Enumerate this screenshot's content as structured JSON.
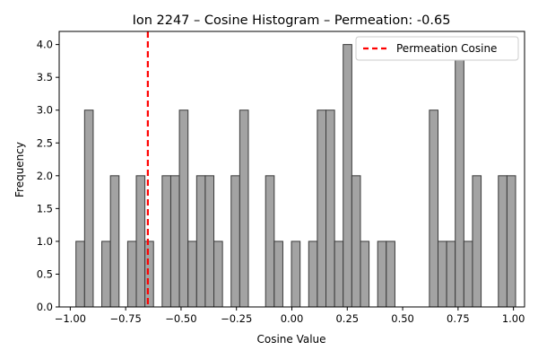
{
  "chart_data": {
    "type": "bar",
    "title": "Ion 2247 – Cosine Histogram – Permeation: -0.65",
    "xlabel": "Cosine Value",
    "ylabel": "Frequency",
    "xlim": [
      -1.05,
      1.05
    ],
    "ylim": [
      0,
      4.2
    ],
    "xticks": [
      -1.0,
      -0.75,
      -0.5,
      -0.25,
      0.0,
      0.25,
      0.5,
      0.75,
      1.0
    ],
    "xtick_labels": [
      "−1.00",
      "−0.75",
      "−0.50",
      "−0.25",
      "0.00",
      "0.25",
      "0.50",
      "0.75",
      "1.00"
    ],
    "yticks": [
      0,
      0.5,
      1.0,
      1.5,
      2.0,
      2.5,
      3.0,
      3.5,
      4.0
    ],
    "ytick_labels": [
      "0.0",
      "0.5",
      "1.0",
      "1.5",
      "2.0",
      "2.5",
      "3.0",
      "3.5",
      "4.0"
    ],
    "bins": {
      "edges_start": -0.9743,
      "bin_width": 0.0389,
      "counts": [
        1,
        3,
        0,
        1,
        2,
        0,
        1,
        2,
        1,
        0,
        2,
        2,
        3,
        1,
        2,
        2,
        1,
        0,
        2,
        3,
        0,
        0,
        2,
        1,
        0,
        1,
        0,
        1,
        3,
        3,
        1,
        4,
        2,
        1,
        0,
        1,
        1,
        0,
        0,
        0,
        0,
        3,
        1,
        1,
        4,
        1,
        2,
        0,
        0,
        2,
        2
      ]
    },
    "vline": {
      "x": -0.65,
      "label": "Permeation Cosine",
      "color": "#ff0000",
      "style": "dashed"
    },
    "bar_color": "#a3a3a3",
    "bar_edge_color": "#3a3a3a",
    "legend_position": "top-right",
    "grid": false
  }
}
